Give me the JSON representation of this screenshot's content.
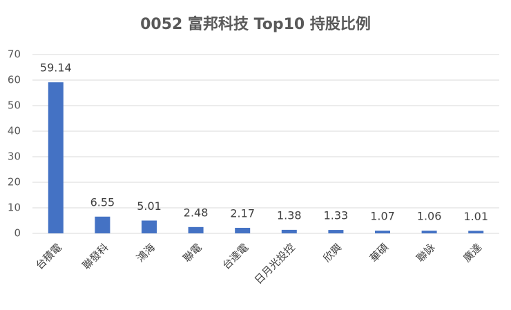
{
  "chart_data": {
    "type": "bar",
    "title": "0052 富邦科技 Top10 持股比例",
    "categories": [
      "台積電",
      "聯發科",
      "鴻海",
      "聯電",
      "台達電",
      "日月光投控",
      "欣興",
      "華碩",
      "聯詠",
      "廣達"
    ],
    "values": [
      59.14,
      6.55,
      5.01,
      2.48,
      2.17,
      1.38,
      1.33,
      1.07,
      1.06,
      1.01
    ],
    "color": "#4472c4",
    "ylim": [
      0,
      70
    ],
    "yticks": [
      0,
      10,
      20,
      30,
      40,
      50,
      60,
      70
    ],
    "grid": true
  }
}
